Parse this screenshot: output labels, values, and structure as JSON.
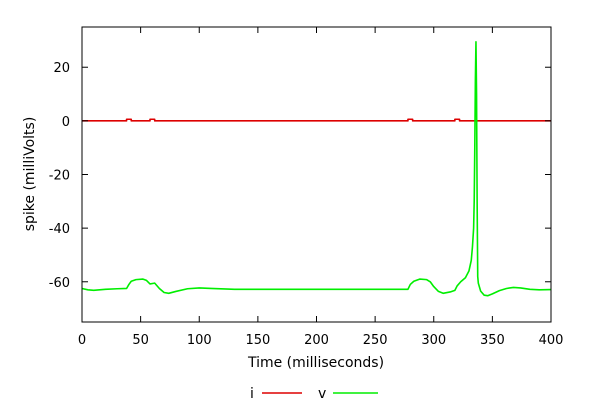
{
  "chart_data": {
    "type": "line",
    "xlabel": "Time (milliseconds)",
    "ylabel": "spike (milliVolts)",
    "xlim": [
      0,
      400
    ],
    "ylim": [
      -75,
      35
    ],
    "x_ticks": [
      0,
      50,
      100,
      150,
      200,
      250,
      300,
      350,
      400
    ],
    "y_ticks": [
      -60,
      -40,
      -20,
      0,
      20
    ],
    "grid": false,
    "legend_position": "bottom",
    "series": [
      {
        "name": "i",
        "color": "#dd0000",
        "points": [
          [
            0,
            0
          ],
          [
            38,
            0
          ],
          [
            38,
            0.6
          ],
          [
            42,
            0.6
          ],
          [
            42,
            0
          ],
          [
            58,
            0
          ],
          [
            58,
            0.6
          ],
          [
            62,
            0.6
          ],
          [
            62,
            0
          ],
          [
            278,
            0
          ],
          [
            278,
            0.6
          ],
          [
            282,
            0.6
          ],
          [
            282,
            0
          ],
          [
            318,
            0
          ],
          [
            318,
            0.6
          ],
          [
            322,
            0.6
          ],
          [
            322,
            0
          ],
          [
            400,
            0
          ]
        ]
      },
      {
        "name": "v",
        "color": "#00ee00",
        "points": [
          [
            0,
            -62.5
          ],
          [
            5,
            -63
          ],
          [
            10,
            -63.2
          ],
          [
            20,
            -62.8
          ],
          [
            30,
            -62.6
          ],
          [
            38,
            -62.5
          ],
          [
            40,
            -61
          ],
          [
            42,
            -59.8
          ],
          [
            46,
            -59.2
          ],
          [
            52,
            -59
          ],
          [
            55,
            -59.5
          ],
          [
            58,
            -60.8
          ],
          [
            62,
            -60.5
          ],
          [
            66,
            -62.5
          ],
          [
            70,
            -64
          ],
          [
            74,
            -64.3
          ],
          [
            80,
            -63.6
          ],
          [
            90,
            -62.6
          ],
          [
            100,
            -62.3
          ],
          [
            110,
            -62.5
          ],
          [
            130,
            -62.8
          ],
          [
            200,
            -62.8
          ],
          [
            270,
            -62.8
          ],
          [
            278,
            -62.8
          ],
          [
            280,
            -61
          ],
          [
            283,
            -59.8
          ],
          [
            288,
            -59
          ],
          [
            294,
            -59.2
          ],
          [
            297,
            -60
          ],
          [
            300,
            -61.8
          ],
          [
            304,
            -63.6
          ],
          [
            308,
            -64.3
          ],
          [
            314,
            -63.8
          ],
          [
            318,
            -63.2
          ],
          [
            320,
            -61.5
          ],
          [
            323,
            -60
          ],
          [
            327,
            -58.5
          ],
          [
            330,
            -56
          ],
          [
            332,
            -52
          ],
          [
            333,
            -47
          ],
          [
            334,
            -40
          ],
          [
            334.5,
            -30
          ],
          [
            335,
            -10
          ],
          [
            335.5,
            15
          ],
          [
            336,
            29.5
          ],
          [
            336.5,
            10
          ],
          [
            337,
            -30
          ],
          [
            337.5,
            -58
          ],
          [
            338,
            -60.5
          ],
          [
            339,
            -62
          ],
          [
            340,
            -63.5
          ],
          [
            343,
            -65
          ],
          [
            346,
            -65.2
          ],
          [
            350,
            -64.5
          ],
          [
            356,
            -63.3
          ],
          [
            362,
            -62.5
          ],
          [
            368,
            -62.1
          ],
          [
            374,
            -62.3
          ],
          [
            382,
            -62.8
          ],
          [
            390,
            -63
          ],
          [
            400,
            -62.9
          ]
        ]
      }
    ]
  }
}
